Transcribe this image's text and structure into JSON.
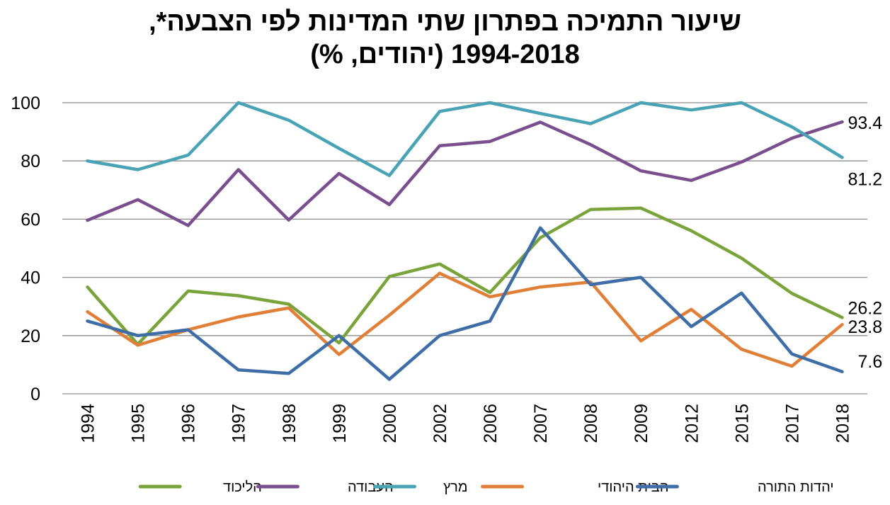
{
  "chart_data": {
    "type": "line",
    "title_line1": "שיעור התמיכה בפתרון שתי המדינות לפי הצבעה*,",
    "title_line2": "1994-2018 (יהודים, %)",
    "categories": [
      "1994",
      "1995",
      "1996",
      "1997",
      "1998",
      "1999",
      "2000",
      "2002",
      "2006",
      "2007",
      "2008",
      "2009",
      "2012",
      "2015",
      "2017",
      "2018"
    ],
    "ylim": [
      0,
      100
    ],
    "yticks": [
      0,
      20,
      40,
      60,
      80,
      100
    ],
    "grid": true,
    "legend_position": "bottom",
    "series": [
      {
        "name": "הליכוד",
        "color": "#7ba33c",
        "values": [
          36.7,
          17,
          35.3,
          33.7,
          30.8,
          17.5,
          40.3,
          44.6,
          34.8,
          53.6,
          63.3,
          63.8,
          56,
          46.6,
          34.5,
          26.2
        ],
        "end_label": "26.2"
      },
      {
        "name": "העבודה",
        "color": "#7a4f8e",
        "values": [
          59.6,
          66.7,
          57.8,
          77,
          59.7,
          75.7,
          65,
          85.2,
          86.7,
          93.3,
          85.6,
          76.6,
          73.3,
          79.6,
          87.8,
          93.4
        ],
        "end_label": "93.4"
      },
      {
        "name": "מרץ",
        "color": "#4aa2b5",
        "values": [
          80,
          77,
          82,
          100,
          94,
          84.3,
          75,
          97,
          100,
          96.3,
          92.8,
          100,
          97.5,
          100,
          91.7,
          81.2
        ],
        "end_label": "81.2"
      },
      {
        "name": "הבית היהודי",
        "color": "#e07f38",
        "values": [
          28.2,
          16.7,
          22,
          26.4,
          29.5,
          13.5,
          27,
          41.4,
          33.3,
          36.7,
          38.4,
          18.2,
          29,
          15.3,
          9.5,
          23.8
        ],
        "end_label": "23.8"
      },
      {
        "name": "יהדות התורה",
        "color": "#3f6da6",
        "values": [
          25,
          20,
          22,
          8.2,
          7,
          20,
          5,
          20,
          25,
          57,
          37.5,
          40,
          23.1,
          34.6,
          13.7,
          7.6
        ],
        "end_label": "7.6"
      }
    ]
  }
}
